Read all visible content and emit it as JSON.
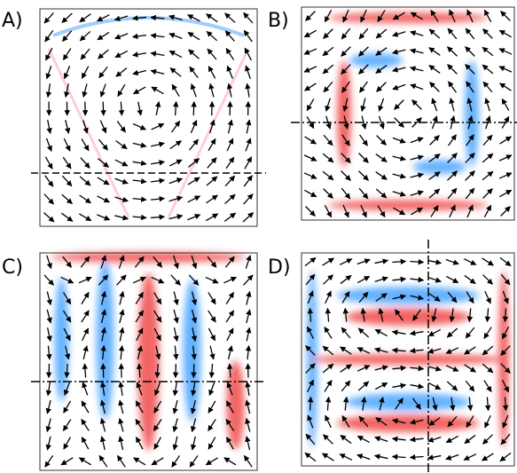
{
  "panels": [
    {
      "label": "A)"
    },
    {
      "label": "B)"
    },
    {
      "label": "C)"
    },
    {
      "label": "D)"
    }
  ]
}
